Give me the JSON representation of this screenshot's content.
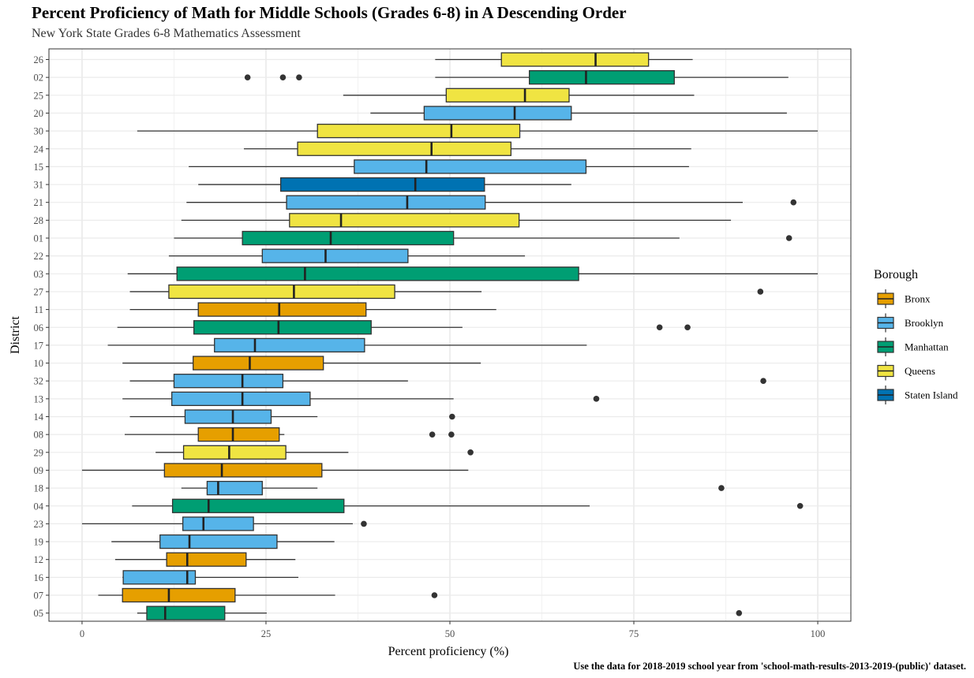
{
  "chart_data": {
    "type": "boxplot",
    "title": "Percent Proficiency of Math for Middle Schools (Grades 6-8) in A Descending Order",
    "subtitle": "New York State Grades 6-8 Mathematics Assessment",
    "caption": "Use the data for 2018-2019 school year from 'school-math-results-2013-2019-(public)' dataset.",
    "xlabel": "Percent proficiency (%)",
    "ylabel": "District",
    "xlim": [
      -4.5,
      104.5
    ],
    "xticks": [
      0,
      25,
      50,
      75,
      100
    ],
    "grid": true,
    "legend": {
      "title": "Borough",
      "placement": "right",
      "entries": [
        {
          "name": "Bronx",
          "color": "#E69F00"
        },
        {
          "name": "Brooklyn",
          "color": "#56B4E9"
        },
        {
          "name": "Manhattan",
          "color": "#009E73"
        },
        {
          "name": "Queens",
          "color": "#F0E442"
        },
        {
          "name": "Staten Island",
          "color": "#0072B2"
        }
      ]
    },
    "boxes": [
      {
        "district": "26",
        "borough": "Queens",
        "min": 48,
        "q1": 57,
        "median": 69.8,
        "q3": 77,
        "max": 83,
        "outliers": []
      },
      {
        "district": "02",
        "borough": "Manhattan",
        "min": 48,
        "q1": 60.8,
        "median": 68.5,
        "q3": 80.5,
        "max": 96,
        "outliers": [
          22.5,
          27.3,
          29.5
        ]
      },
      {
        "district": "25",
        "borough": "Queens",
        "min": 35.5,
        "q1": 49.5,
        "median": 60.2,
        "q3": 66.2,
        "max": 83.2,
        "outliers": []
      },
      {
        "district": "20",
        "borough": "Brooklyn",
        "min": 39.2,
        "q1": 46.5,
        "median": 58.8,
        "q3": 66.5,
        "max": 95.8,
        "outliers": []
      },
      {
        "district": "30",
        "borough": "Queens",
        "min": 7.5,
        "q1": 32,
        "median": 50.2,
        "q3": 59.5,
        "max": 100,
        "outliers": []
      },
      {
        "district": "24",
        "borough": "Queens",
        "min": 22,
        "q1": 29.3,
        "median": 47.5,
        "q3": 58.3,
        "max": 82.8,
        "outliers": []
      },
      {
        "district": "15",
        "borough": "Brooklyn",
        "min": 14.5,
        "q1": 37,
        "median": 46.8,
        "q3": 68.5,
        "max": 82.5,
        "outliers": []
      },
      {
        "district": "31",
        "borough": "Staten Island",
        "min": 15.8,
        "q1": 27,
        "median": 45.3,
        "q3": 54.7,
        "max": 66.5,
        "outliers": []
      },
      {
        "district": "21",
        "borough": "Brooklyn",
        "min": 14.2,
        "q1": 27.8,
        "median": 44.2,
        "q3": 54.8,
        "max": 89.8,
        "outliers": [
          96.7
        ]
      },
      {
        "district": "28",
        "borough": "Queens",
        "min": 13.5,
        "q1": 28.2,
        "median": 35.2,
        "q3": 59.4,
        "max": 88.2,
        "outliers": []
      },
      {
        "district": "01",
        "borough": "Manhattan",
        "min": 12.5,
        "q1": 21.8,
        "median": 33.8,
        "q3": 50.5,
        "max": 81.2,
        "outliers": [
          96.1
        ]
      },
      {
        "district": "22",
        "borough": "Brooklyn",
        "min": 11.8,
        "q1": 24.5,
        "median": 33.1,
        "q3": 44.3,
        "max": 60.2,
        "outliers": []
      },
      {
        "district": "03",
        "borough": "Manhattan",
        "min": 6.2,
        "q1": 12.9,
        "median": 30.3,
        "q3": 67.5,
        "max": 100,
        "outliers": []
      },
      {
        "district": "27",
        "borough": "Queens",
        "min": 6.5,
        "q1": 11.8,
        "median": 28.8,
        "q3": 42.5,
        "max": 54.3,
        "outliers": [
          92.2
        ]
      },
      {
        "district": "11",
        "borough": "Bronx",
        "min": 6.5,
        "q1": 15.8,
        "median": 26.8,
        "q3": 38.6,
        "max": 56.3,
        "outliers": []
      },
      {
        "district": "06",
        "borough": "Manhattan",
        "min": 4.8,
        "q1": 15.2,
        "median": 26.7,
        "q3": 39.3,
        "max": 51.7,
        "outliers": [
          78.5,
          82.3
        ]
      },
      {
        "district": "17",
        "borough": "Brooklyn",
        "min": 3.5,
        "q1": 18,
        "median": 23.5,
        "q3": 38.4,
        "max": 68.6,
        "outliers": []
      },
      {
        "district": "10",
        "borough": "Bronx",
        "min": 5.5,
        "q1": 15.1,
        "median": 22.8,
        "q3": 32.8,
        "max": 54.2,
        "outliers": []
      },
      {
        "district": "32",
        "borough": "Brooklyn",
        "min": 6.5,
        "q1": 12.5,
        "median": 21.8,
        "q3": 27.3,
        "max": 44.3,
        "outliers": [
          92.6
        ]
      },
      {
        "district": "13",
        "borough": "Brooklyn",
        "min": 5.5,
        "q1": 12.2,
        "median": 21.8,
        "q3": 31,
        "max": 50.5,
        "outliers": [
          69.9
        ]
      },
      {
        "district": "14",
        "borough": "Brooklyn",
        "min": 6.5,
        "q1": 14,
        "median": 20.5,
        "q3": 25.7,
        "max": 32,
        "outliers": [
          50.3
        ]
      },
      {
        "district": "08",
        "borough": "Bronx",
        "min": 5.8,
        "q1": 15.8,
        "median": 20.5,
        "q3": 26.8,
        "max": 27.5,
        "outliers": [
          47.6,
          50.2
        ]
      },
      {
        "district": "29",
        "borough": "Queens",
        "min": 10,
        "q1": 13.8,
        "median": 20,
        "q3": 27.7,
        "max": 36.2,
        "outliers": [
          52.8
        ]
      },
      {
        "district": "09",
        "borough": "Bronx",
        "min": 0,
        "q1": 11.2,
        "median": 19,
        "q3": 32.6,
        "max": 52.5,
        "outliers": []
      },
      {
        "district": "18",
        "borough": "Brooklyn",
        "min": 13.5,
        "q1": 17,
        "median": 18.5,
        "q3": 24.5,
        "max": 32,
        "outliers": [
          86.9
        ]
      },
      {
        "district": "04",
        "borough": "Manhattan",
        "min": 6.8,
        "q1": 12.3,
        "median": 17.2,
        "q3": 35.6,
        "max": 69,
        "outliers": [
          97.6
        ]
      },
      {
        "district": "23",
        "borough": "Brooklyn",
        "min": 0,
        "q1": 13.7,
        "median": 16.5,
        "q3": 23.3,
        "max": 36.8,
        "outliers": [
          38.3
        ]
      },
      {
        "district": "19",
        "borough": "Brooklyn",
        "min": 4,
        "q1": 10.6,
        "median": 14.6,
        "q3": 26.5,
        "max": 34.3,
        "outliers": []
      },
      {
        "district": "12",
        "borough": "Bronx",
        "min": 4.5,
        "q1": 11.5,
        "median": 14.3,
        "q3": 22.3,
        "max": 29,
        "outliers": []
      },
      {
        "district": "16",
        "borough": "Brooklyn",
        "min": 5.5,
        "q1": 5.6,
        "median": 14.3,
        "q3": 15.4,
        "max": 29.4,
        "outliers": []
      },
      {
        "district": "07",
        "borough": "Bronx",
        "min": 2.2,
        "q1": 5.5,
        "median": 11.8,
        "q3": 20.8,
        "max": 34.4,
        "outliers": [
          47.9
        ]
      },
      {
        "district": "05",
        "borough": "Manhattan",
        "min": 7.5,
        "q1": 8.8,
        "median": 11.3,
        "q3": 19.4,
        "max": 25.1,
        "outliers": [
          89.3
        ]
      }
    ]
  }
}
